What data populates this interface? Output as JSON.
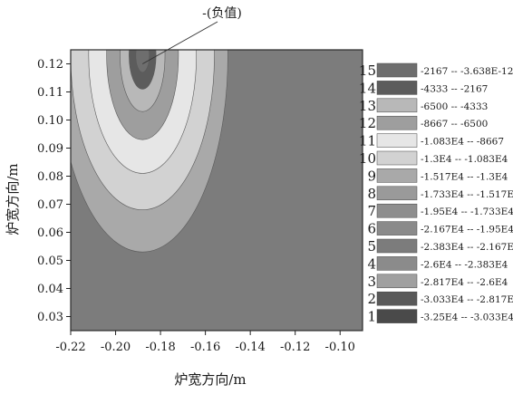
{
  "chart_data": {
    "type": "heatmap",
    "xlabel": "炉宽方向/m",
    "ylabel": "炉宽方向/m",
    "xlim": [
      -0.22,
      -0.09
    ],
    "ylim": [
      0.025,
      0.125
    ],
    "xticks": [
      "-0.22",
      "-0.20",
      "-0.18",
      "-0.16",
      "-0.14",
      "-0.12",
      "-0.10"
    ],
    "yticks": [
      "0.03",
      "0.04",
      "0.05",
      "0.06",
      "0.07",
      "0.08",
      "0.09",
      "0.10",
      "0.11",
      "0.12"
    ],
    "annotation": {
      "text": "-(负值)",
      "x": -0.188,
      "y": 0.12
    },
    "contour_source": {
      "x": -0.188,
      "y": 0.123
    },
    "contour_bands": [
      {
        "level": 9,
        "rx": 0.038,
        "ry": 0.07
      },
      {
        "level": 10,
        "rx": 0.032,
        "ry": 0.055
      },
      {
        "level": 11,
        "rx": 0.024,
        "ry": 0.042
      },
      {
        "level": 12,
        "rx": 0.016,
        "ry": 0.03
      },
      {
        "level": 13,
        "rx": 0.01,
        "ry": 0.02
      },
      {
        "level": 14,
        "rx": 0.006,
        "ry": 0.012
      },
      {
        "level": 15,
        "rx": 0.003,
        "ry": 0.006
      }
    ],
    "background_level": 5,
    "legend": [
      {
        "level": "15",
        "label": "-2167 -- -3.638E-12",
        "color": "#6e6e6e"
      },
      {
        "level": "14",
        "label": "-4333 -- -2167",
        "color": "#5c5c5c"
      },
      {
        "level": "13",
        "label": "-6500 -- -4333",
        "color": "#b8b8b8"
      },
      {
        "level": "12",
        "label": "-8667 -- -6500",
        "color": "#9e9e9e"
      },
      {
        "level": "11",
        "label": "-1.083E4 -- -8667",
        "color": "#e6e6e6"
      },
      {
        "level": "10",
        "label": "-1.3E4 -- -1.083E4",
        "color": "#d2d2d2"
      },
      {
        "level": "9",
        "label": "-1.517E4 -- -1.3E4",
        "color": "#a9a9a9"
      },
      {
        "level": "8",
        "label": "-1.733E4 -- -1.517E4",
        "color": "#9a9a9a"
      },
      {
        "level": "7",
        "label": "-1.95E4 -- -1.733E4",
        "color": "#8e8e8e"
      },
      {
        "level": "6",
        "label": "-2.167E4 -- -1.95E4",
        "color": "#8a8a8a"
      },
      {
        "level": "5",
        "label": "-2.383E4 -- -2.167E4",
        "color": "#7c7c7c"
      },
      {
        "level": "4",
        "label": "-2.6E4 -- -2.383E4",
        "color": "#8b8b8b"
      },
      {
        "level": "3",
        "label": "-2.817E4 -- -2.6E4",
        "color": "#a0a0a0"
      },
      {
        "level": "2",
        "label": "-3.033E4 -- -2.817E4",
        "color": "#595959"
      },
      {
        "level": "1",
        "label": "-3.25E4 -- -3.033E4",
        "color": "#4a4a4a"
      }
    ]
  }
}
